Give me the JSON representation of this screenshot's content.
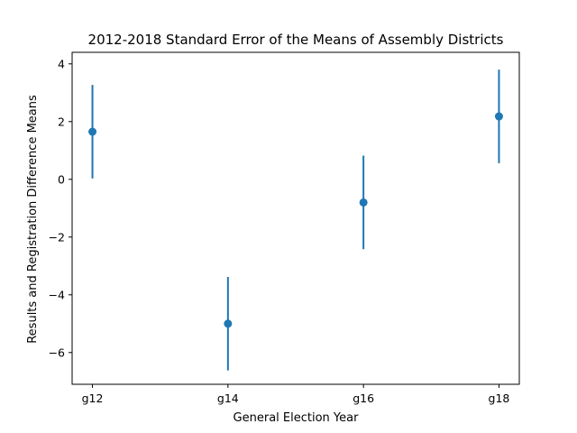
{
  "chart_data": {
    "type": "scatter",
    "title": "2012-2018 Standard Error of the Means of Assembly Districts",
    "xlabel": "General Election Year",
    "ylabel": "Results and Registration Difference Means",
    "categories": [
      "g12",
      "g14",
      "g16",
      "g18"
    ],
    "series": [
      {
        "values": [
          1.65,
          -5.0,
          -0.8,
          2.18
        ],
        "error": [
          1.62,
          1.62,
          1.62,
          1.62
        ]
      }
    ],
    "ylim": [
      -7.1,
      4.4
    ],
    "yticks": [
      -6,
      -4,
      -2,
      0,
      2,
      4
    ],
    "ytick_labels": [
      "−6",
      "−4",
      "−2",
      "0",
      "2",
      "4"
    ],
    "grid": false,
    "color": "#1f77b4"
  }
}
